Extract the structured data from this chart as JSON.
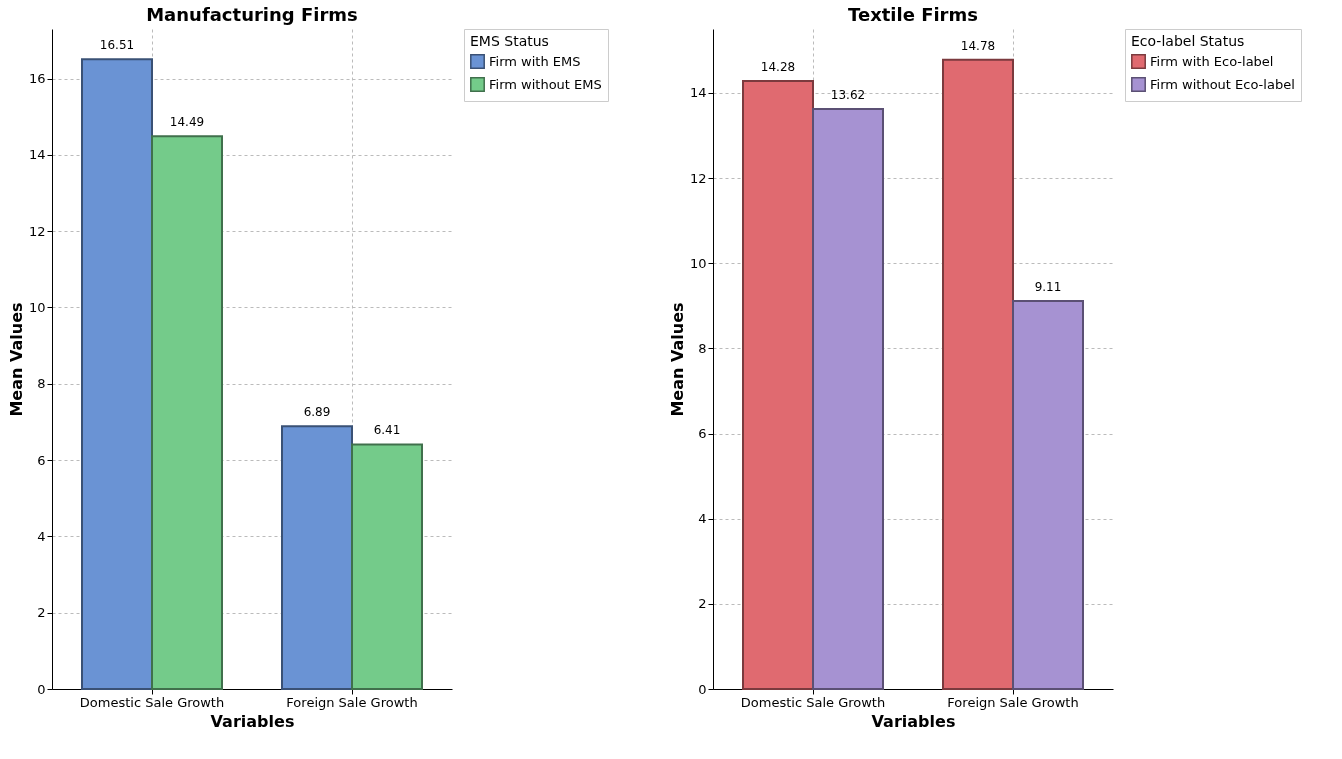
{
  "chart_data": [
    {
      "type": "bar",
      "title": "Manufacturing Firms",
      "xlabel": "Variables",
      "ylabel": "Mean Values",
      "legend_title": "EMS Status",
      "categories": [
        "Domestic Sale Growth",
        "Foreign Sale Growth"
      ],
      "series": [
        {
          "name": "Firm with EMS",
          "color": "#6a93d4",
          "values": [
            16.51,
            6.89
          ]
        },
        {
          "name": "Firm without EMS",
          "color": "#74cb8a",
          "values": [
            14.49,
            6.41
          ]
        }
      ],
      "ylim": [
        0,
        17.3
      ],
      "yticks": [
        0,
        2,
        4,
        6,
        8,
        10,
        12,
        14,
        16
      ],
      "grid": true,
      "legend": "top right",
      "data_labels": true
    },
    {
      "type": "bar",
      "title": "Textile Firms",
      "xlabel": "Variables",
      "ylabel": "Mean Values",
      "legend_title": "Eco-label Status",
      "categories": [
        "Domestic Sale Growth",
        "Foreign Sale Growth"
      ],
      "series": [
        {
          "name": "Firm with Eco-label",
          "color": "#e06a70",
          "values": [
            14.28,
            14.78
          ]
        },
        {
          "name": "Firm without Eco-label",
          "color": "#a692d2",
          "values": [
            13.62,
            9.11
          ]
        }
      ],
      "ylim": [
        0,
        15.5
      ],
      "yticks": [
        0,
        2,
        4,
        6,
        8,
        10,
        12,
        14
      ],
      "grid": true,
      "legend": "top right",
      "data_labels": true
    }
  ]
}
